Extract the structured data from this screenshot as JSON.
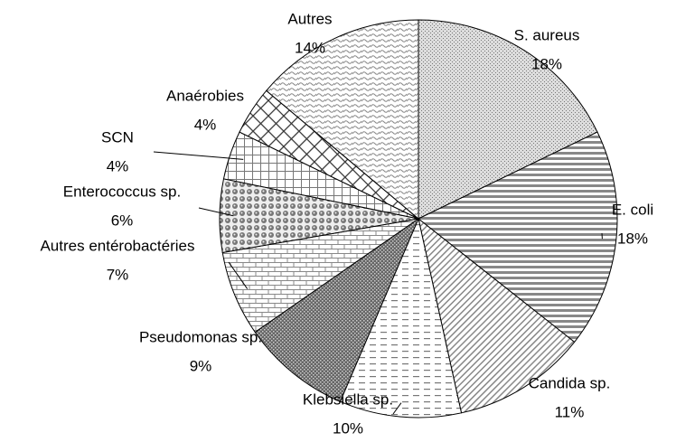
{
  "chart_data": {
    "type": "pie",
    "categories": [
      "S. aureus",
      "E. coli",
      "Candida sp.",
      "Klebsiella sp.",
      "Pseudomonas sp.",
      "Autres entérobactéries",
      "Enterococcus sp.",
      "SCN",
      "Anaérobies",
      "Autres"
    ],
    "values": [
      18,
      18,
      11,
      10,
      9,
      7,
      6,
      4,
      4,
      14
    ],
    "value_labels": [
      "18%",
      "18%",
      "11%",
      "10%",
      "9%",
      "7%",
      "6%",
      "4%",
      "4%",
      "14%"
    ]
  }
}
